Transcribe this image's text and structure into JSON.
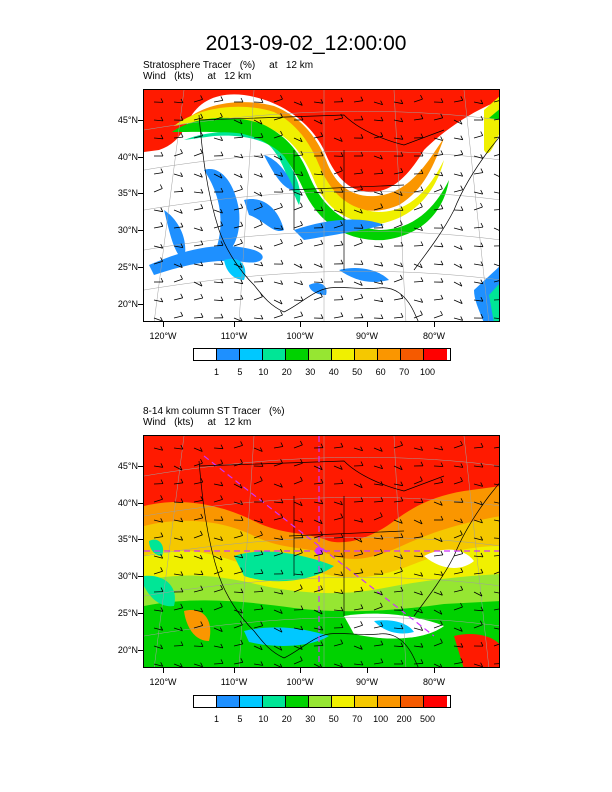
{
  "title": "2013-09-02_12:00:00",
  "panels": [
    {
      "line1": "Stratosphere Tracer   (%)     at   12 km",
      "line2": "Wind   (kts)     at   12 km",
      "lat_labels": [
        "45°N",
        "40°N",
        "35°N",
        "30°N",
        "25°N",
        "20°N"
      ],
      "lon_labels": [
        "120°W",
        "110°W",
        "100°W",
        "90°W",
        "80°W"
      ],
      "colorbar_labels": [
        "1",
        "5",
        "10",
        "20",
        "30",
        "40",
        "50",
        "60",
        "70",
        "100"
      ]
    },
    {
      "line1": "8-14 km column ST Tracer   (%)",
      "line2": "Wind   (kts)     at   12 km",
      "lat_labels": [
        "45°N",
        "40°N",
        "35°N",
        "30°N",
        "25°N",
        "20°N"
      ],
      "lon_labels": [
        "120°W",
        "110°W",
        "100°W",
        "90°W",
        "80°W"
      ],
      "colorbar_labels": [
        "1",
        "5",
        "10",
        "20",
        "30",
        "50",
        "70",
        "100",
        "200",
        "500"
      ]
    }
  ],
  "colors": {
    "palette": [
      "#ffffff",
      "#1e90ff",
      "#00c8ff",
      "#00e696",
      "#00d200",
      "#96e632",
      "#f0f000",
      "#f5c800",
      "#fa9600",
      "#f55a00",
      "#ff0000"
    ],
    "coastline": "#000000",
    "grid": "#a0a0a0",
    "flight_track": "#cc33ff"
  }
}
